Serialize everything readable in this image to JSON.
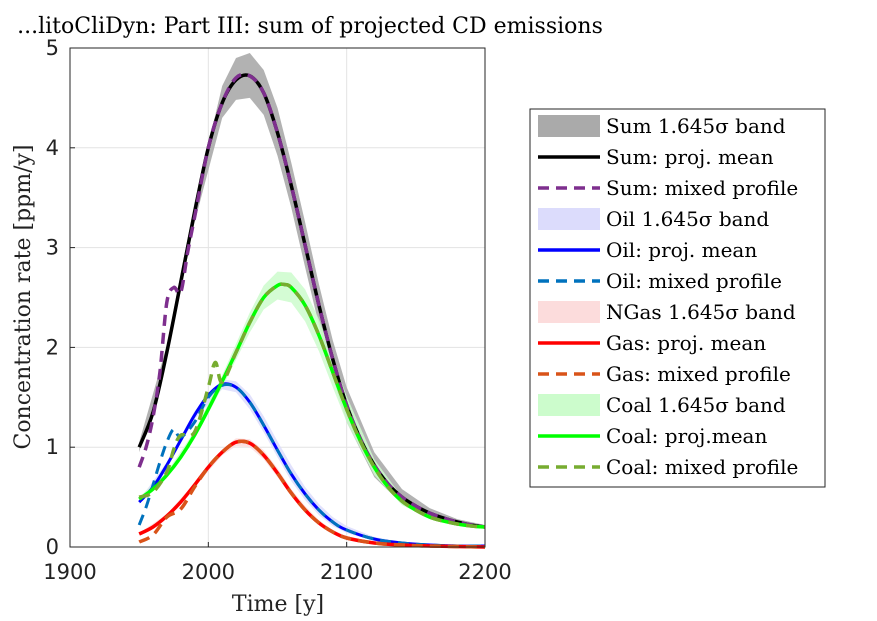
{
  "chart_data": {
    "type": "line",
    "title": "...litoCliDyn: Part III: sum of projected CD emissions",
    "xlabel": "Time [y]",
    "ylabel": "Concentration rate [ppm/y]",
    "xlim": [
      1900,
      2200
    ],
    "ylim": [
      0,
      5
    ],
    "xticks": [
      "1900",
      "2000",
      "2100",
      "2200"
    ],
    "yticks": [
      "0",
      "1",
      "2",
      "3",
      "4",
      "5"
    ],
    "grid": true,
    "legend_position": "right",
    "legend": [
      {
        "label": "Sum 1.645σ band",
        "kind": "band",
        "color": "#aaaaaa"
      },
      {
        "label": "Sum: proj. mean",
        "kind": "solid",
        "color": "#000000"
      },
      {
        "label": "Sum: mixed profile",
        "kind": "dashed",
        "color": "#7e2f8e"
      },
      {
        "label": "Oil 1.645σ band",
        "kind": "band",
        "color": "#dcdcfc"
      },
      {
        "label": "Oil: proj. mean",
        "kind": "solid",
        "color": "#0000ff"
      },
      {
        "label": "Oil: mixed profile",
        "kind": "dashed",
        "color": "#0072bd"
      },
      {
        "label": "NGas 1.645σ band",
        "kind": "band",
        "color": "#fcdcdc"
      },
      {
        "label": "Gas: proj. mean",
        "kind": "solid",
        "color": "#ff0000"
      },
      {
        "label": "Gas: mixed profile",
        "kind": "dashed",
        "color": "#d95319"
      },
      {
        "label": "Coal 1.645σ band",
        "kind": "band",
        "color": "#ccfccc"
      },
      {
        "label": "Coal: proj.mean",
        "kind": "solid",
        "color": "#00ff00"
      },
      {
        "label": "Coal: mixed profile",
        "kind": "dashed",
        "color": "#77ac30"
      }
    ],
    "series": [
      {
        "color": "#000000",
        "dash": false,
        "width": 3.5,
        "points": [
          [
            1950,
            1.0
          ],
          [
            1960,
            1.35
          ],
          [
            1970,
            1.95
          ],
          [
            1980,
            2.65
          ],
          [
            1990,
            3.35
          ],
          [
            2000,
            4.0
          ],
          [
            2010,
            4.45
          ],
          [
            2020,
            4.68
          ],
          [
            2030,
            4.72
          ],
          [
            2040,
            4.55
          ],
          [
            2050,
            4.15
          ],
          [
            2060,
            3.62
          ],
          [
            2070,
            3.02
          ],
          [
            2080,
            2.42
          ],
          [
            2090,
            1.88
          ],
          [
            2100,
            1.42
          ],
          [
            2110,
            1.08
          ],
          [
            2120,
            0.82
          ],
          [
            2130,
            0.63
          ],
          [
            2140,
            0.5
          ],
          [
            2150,
            0.41
          ],
          [
            2160,
            0.34
          ],
          [
            2170,
            0.29
          ],
          [
            2180,
            0.25
          ],
          [
            2190,
            0.22
          ],
          [
            2200,
            0.2
          ]
        ]
      },
      {
        "color": "#7e2f8e",
        "dash": true,
        "width": 3.5,
        "points": [
          [
            1950,
            0.8
          ],
          [
            1955,
            1.0
          ],
          [
            1960,
            1.3
          ],
          [
            1965,
            1.75
          ],
          [
            1970,
            2.45
          ],
          [
            1975,
            2.6
          ],
          [
            1980,
            2.55
          ],
          [
            1985,
            2.95
          ],
          [
            1990,
            3.3
          ],
          [
            2000,
            4.0
          ],
          [
            2010,
            4.45
          ],
          [
            2020,
            4.7
          ],
          [
            2030,
            4.72
          ],
          [
            2040,
            4.55
          ],
          [
            2050,
            4.15
          ],
          [
            2060,
            3.62
          ],
          [
            2070,
            3.02
          ],
          [
            2080,
            2.42
          ],
          [
            2090,
            1.88
          ],
          [
            2100,
            1.42
          ],
          [
            2110,
            1.08
          ],
          [
            2120,
            0.82
          ],
          [
            2130,
            0.63
          ],
          [
            2140,
            0.5
          ],
          [
            2150,
            0.41
          ],
          [
            2160,
            0.34
          ],
          [
            2170,
            0.29
          ],
          [
            2180,
            0.25
          ],
          [
            2190,
            0.22
          ],
          [
            2200,
            0.2
          ]
        ]
      },
      {
        "color": "#0000ff",
        "dash": false,
        "width": 3,
        "points": [
          [
            1950,
            0.45
          ],
          [
            1960,
            0.6
          ],
          [
            1970,
            0.82
          ],
          [
            1980,
            1.07
          ],
          [
            1990,
            1.32
          ],
          [
            2000,
            1.52
          ],
          [
            2010,
            1.63
          ],
          [
            2020,
            1.6
          ],
          [
            2030,
            1.45
          ],
          [
            2040,
            1.22
          ],
          [
            2050,
            0.97
          ],
          [
            2060,
            0.73
          ],
          [
            2070,
            0.53
          ],
          [
            2080,
            0.37
          ],
          [
            2090,
            0.25
          ],
          [
            2100,
            0.17
          ],
          [
            2120,
            0.08
          ],
          [
            2140,
            0.04
          ],
          [
            2160,
            0.02
          ],
          [
            2180,
            0.01
          ],
          [
            2200,
            0.01
          ]
        ]
      },
      {
        "color": "#0072bd",
        "dash": true,
        "width": 3,
        "points": [
          [
            1950,
            0.22
          ],
          [
            1955,
            0.4
          ],
          [
            1960,
            0.62
          ],
          [
            1965,
            0.85
          ],
          [
            1970,
            1.05
          ],
          [
            1975,
            1.18
          ],
          [
            1980,
            1.1
          ],
          [
            1990,
            1.25
          ],
          [
            2000,
            1.5
          ],
          [
            2010,
            1.62
          ],
          [
            2020,
            1.6
          ],
          [
            2030,
            1.45
          ],
          [
            2040,
            1.22
          ],
          [
            2050,
            0.97
          ],
          [
            2060,
            0.73
          ],
          [
            2070,
            0.53
          ],
          [
            2080,
            0.37
          ],
          [
            2090,
            0.25
          ],
          [
            2100,
            0.17
          ],
          [
            2120,
            0.08
          ],
          [
            2140,
            0.04
          ],
          [
            2160,
            0.02
          ],
          [
            2180,
            0.01
          ],
          [
            2200,
            0.01
          ]
        ]
      },
      {
        "color": "#00ff00",
        "dash": false,
        "width": 3.5,
        "points": [
          [
            1950,
            0.48
          ],
          [
            1960,
            0.58
          ],
          [
            1970,
            0.72
          ],
          [
            1980,
            0.9
          ],
          [
            1990,
            1.12
          ],
          [
            2000,
            1.38
          ],
          [
            2010,
            1.66
          ],
          [
            2020,
            1.95
          ],
          [
            2030,
            2.25
          ],
          [
            2040,
            2.5
          ],
          [
            2050,
            2.62
          ],
          [
            2055,
            2.63
          ],
          [
            2060,
            2.6
          ],
          [
            2070,
            2.42
          ],
          [
            2080,
            2.12
          ],
          [
            2090,
            1.75
          ],
          [
            2100,
            1.38
          ],
          [
            2110,
            1.06
          ],
          [
            2120,
            0.8
          ],
          [
            2130,
            0.6
          ],
          [
            2140,
            0.46
          ],
          [
            2150,
            0.37
          ],
          [
            2160,
            0.3
          ],
          [
            2170,
            0.26
          ],
          [
            2180,
            0.23
          ],
          [
            2190,
            0.21
          ],
          [
            2200,
            0.2
          ]
        ]
      },
      {
        "color": "#77ac30",
        "dash": true,
        "width": 3.5,
        "points": [
          [
            1950,
            0.5
          ],
          [
            1960,
            0.55
          ],
          [
            1970,
            0.75
          ],
          [
            1975,
            0.98
          ],
          [
            1980,
            1.12
          ],
          [
            1990,
            1.15
          ],
          [
            2000,
            1.6
          ],
          [
            2005,
            1.85
          ],
          [
            2010,
            1.65
          ],
          [
            2020,
            1.95
          ],
          [
            2030,
            2.25
          ],
          [
            2040,
            2.5
          ],
          [
            2050,
            2.62
          ],
          [
            2055,
            2.63
          ],
          [
            2060,
            2.6
          ],
          [
            2070,
            2.42
          ],
          [
            2080,
            2.12
          ],
          [
            2090,
            1.75
          ],
          [
            2100,
            1.38
          ],
          [
            2110,
            1.06
          ],
          [
            2120,
            0.8
          ],
          [
            2130,
            0.6
          ],
          [
            2140,
            0.46
          ],
          [
            2150,
            0.37
          ],
          [
            2160,
            0.3
          ],
          [
            2170,
            0.26
          ],
          [
            2180,
            0.23
          ],
          [
            2190,
            0.21
          ],
          [
            2200,
            0.2
          ]
        ]
      },
      {
        "color": "#ff0000",
        "dash": false,
        "width": 3.5,
        "points": [
          [
            1950,
            0.13
          ],
          [
            1960,
            0.2
          ],
          [
            1970,
            0.31
          ],
          [
            1980,
            0.45
          ],
          [
            1990,
            0.62
          ],
          [
            2000,
            0.8
          ],
          [
            2010,
            0.95
          ],
          [
            2020,
            1.05
          ],
          [
            2030,
            1.04
          ],
          [
            2040,
            0.92
          ],
          [
            2050,
            0.74
          ],
          [
            2060,
            0.54
          ],
          [
            2070,
            0.37
          ],
          [
            2080,
            0.24
          ],
          [
            2090,
            0.15
          ],
          [
            2100,
            0.09
          ],
          [
            2120,
            0.04
          ],
          [
            2140,
            0.02
          ],
          [
            2160,
            0.01
          ],
          [
            2200,
            0.0
          ]
        ]
      },
      {
        "color": "#d95319",
        "dash": true,
        "width": 3.5,
        "points": [
          [
            1950,
            0.05
          ],
          [
            1960,
            0.12
          ],
          [
            1970,
            0.3
          ],
          [
            1980,
            0.38
          ],
          [
            1990,
            0.6
          ],
          [
            2000,
            0.8
          ],
          [
            2010,
            0.95
          ],
          [
            2020,
            1.05
          ],
          [
            2030,
            1.04
          ],
          [
            2040,
            0.92
          ],
          [
            2050,
            0.74
          ],
          [
            2060,
            0.54
          ],
          [
            2070,
            0.37
          ],
          [
            2080,
            0.24
          ],
          [
            2090,
            0.15
          ],
          [
            2100,
            0.09
          ],
          [
            2120,
            0.04
          ],
          [
            2140,
            0.02
          ],
          [
            2160,
            0.01
          ],
          [
            2200,
            0.0
          ]
        ]
      }
    ],
    "bands": [
      {
        "color": "#aaaaaa",
        "opacity": 0.9,
        "x": [
          1950,
          1970,
          1990,
          2010,
          2020,
          2030,
          2040,
          2050,
          2060,
          2070,
          2080,
          2090,
          2100,
          2120,
          2140,
          2160,
          2180,
          2200
        ],
        "lo": [
          0.95,
          1.88,
          3.25,
          4.3,
          4.48,
          4.5,
          4.33,
          3.92,
          3.4,
          2.8,
          2.22,
          1.7,
          1.25,
          0.7,
          0.43,
          0.3,
          0.23,
          0.19
        ],
        "hi": [
          1.05,
          2.02,
          3.45,
          4.62,
          4.9,
          4.95,
          4.78,
          4.4,
          3.85,
          3.25,
          2.63,
          2.07,
          1.6,
          0.95,
          0.58,
          0.39,
          0.28,
          0.22
        ]
      },
      {
        "color": "#dcdcfc",
        "opacity": 0.85,
        "x": [
          1950,
          1970,
          1990,
          2010,
          2020,
          2030,
          2040,
          2050,
          2060,
          2070,
          2080,
          2090,
          2100,
          2120,
          2140,
          2170,
          2200
        ],
        "lo": [
          0.43,
          0.79,
          1.28,
          1.58,
          1.55,
          1.38,
          1.15,
          0.9,
          0.66,
          0.47,
          0.32,
          0.21,
          0.14,
          0.06,
          0.03,
          0.01,
          0.0
        ],
        "hi": [
          0.47,
          0.85,
          1.36,
          1.68,
          1.66,
          1.53,
          1.31,
          1.06,
          0.82,
          0.6,
          0.43,
          0.3,
          0.21,
          0.1,
          0.05,
          0.02,
          0.01
        ]
      },
      {
        "color": "#fcdcdc",
        "opacity": 0.85,
        "x": [
          1950,
          1970,
          1990,
          2010,
          2020,
          2030,
          2040,
          2050,
          2060,
          2070,
          2080,
          2090,
          2100,
          2120,
          2140,
          2170,
          2200
        ],
        "lo": [
          0.12,
          0.3,
          0.6,
          0.92,
          1.01,
          1.0,
          0.88,
          0.7,
          0.51,
          0.34,
          0.22,
          0.13,
          0.08,
          0.03,
          0.01,
          0.0,
          0.0
        ],
        "hi": [
          0.14,
          0.33,
          0.64,
          0.98,
          1.09,
          1.08,
          0.97,
          0.79,
          0.58,
          0.41,
          0.27,
          0.17,
          0.11,
          0.05,
          0.02,
          0.01,
          0.0
        ]
      },
      {
        "color": "#ccfccc",
        "opacity": 0.85,
        "x": [
          1950,
          1970,
          1990,
          2010,
          2030,
          2040,
          2050,
          2060,
          2070,
          2080,
          2090,
          2100,
          2120,
          2140,
          2160,
          2180,
          2200
        ],
        "lo": [
          0.46,
          0.69,
          1.08,
          1.6,
          2.15,
          2.38,
          2.48,
          2.45,
          2.26,
          1.96,
          1.6,
          1.25,
          0.72,
          0.42,
          0.28,
          0.22,
          0.19
        ],
        "hi": [
          0.5,
          0.75,
          1.16,
          1.72,
          2.35,
          2.62,
          2.76,
          2.75,
          2.58,
          2.28,
          1.9,
          1.51,
          0.88,
          0.5,
          0.32,
          0.24,
          0.21
        ]
      }
    ]
  }
}
